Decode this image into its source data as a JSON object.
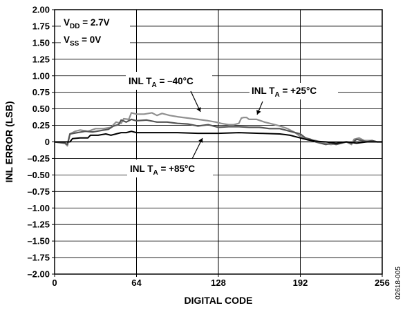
{
  "chart_data": {
    "type": "line",
    "title": "",
    "xlabel": "DIGITAL CODE",
    "ylabel": "INL ERROR (LSB)",
    "xlim": [
      0,
      256
    ],
    "ylim": [
      -2.0,
      2.0
    ],
    "x_ticks": [
      "0",
      "64",
      "128",
      "192",
      "256"
    ],
    "y_ticks": [
      "2.00",
      "1.75",
      "1.50",
      "1.25",
      "1.00",
      "0.75",
      "0.50",
      "0.25",
      "0",
      "–0.25",
      "–0.50",
      "–0.75",
      "–1.00",
      "–1.25",
      "–1.50",
      "–1.75",
      "–2.00"
    ],
    "grid": true,
    "conditions": [
      {
        "main": "V",
        "sub": "DD",
        "rest": " = 2.7V"
      },
      {
        "main": "V",
        "sub": "SS",
        "rest": " = 0V"
      }
    ],
    "annotations": [
      {
        "pre": "INL T",
        "sub": "A",
        "post": " = –40°C",
        "series_index": 0
      },
      {
        "pre": "INL T",
        "sub": "A",
        "post": " = +25°C",
        "series_index": 1
      },
      {
        "pre": "INL T",
        "sub": "A",
        "post": " = +85°C",
        "series_index": 2
      }
    ],
    "series": [
      {
        "color": "#909090",
        "x": [
          0,
          8,
          10,
          12,
          16,
          20,
          26,
          32,
          38,
          44,
          48,
          52,
          54,
          58,
          60,
          64,
          70,
          76,
          80,
          84,
          90,
          96,
          104,
          112,
          120,
          126,
          130,
          136,
          140,
          144,
          146,
          148,
          150,
          152,
          158,
          164,
          170,
          176,
          182,
          188,
          192,
          198,
          204,
          210,
          216,
          222,
          228,
          232,
          234,
          238,
          242,
          248,
          252,
          256
        ],
        "y": [
          0.0,
          -0.02,
          -0.06,
          0.12,
          0.16,
          0.18,
          0.16,
          0.2,
          0.2,
          0.22,
          0.3,
          0.28,
          0.35,
          0.34,
          0.44,
          0.42,
          0.42,
          0.44,
          0.4,
          0.43,
          0.4,
          0.38,
          0.36,
          0.34,
          0.32,
          0.3,
          0.28,
          0.26,
          0.26,
          0.28,
          0.36,
          0.37,
          0.37,
          0.34,
          0.34,
          0.3,
          0.27,
          0.24,
          0.2,
          0.14,
          0.08,
          0.04,
          0.02,
          -0.02,
          -0.04,
          -0.02,
          0.0,
          -0.04,
          0.04,
          0.06,
          0.02,
          0.02,
          0.0,
          0.0
        ]
      },
      {
        "color": "#555555",
        "x": [
          0,
          8,
          10,
          12,
          18,
          24,
          30,
          36,
          42,
          46,
          50,
          52,
          56,
          60,
          64,
          72,
          80,
          88,
          96,
          104,
          112,
          120,
          128,
          136,
          144,
          152,
          160,
          168,
          176,
          184,
          192,
          196,
          200,
          204,
          208,
          212,
          216,
          220,
          224,
          228,
          232,
          236,
          240,
          244,
          248,
          252,
          256
        ],
        "y": [
          0.0,
          -0.02,
          -0.04,
          0.12,
          0.14,
          0.16,
          0.15,
          0.17,
          0.19,
          0.24,
          0.26,
          0.33,
          0.3,
          0.34,
          0.32,
          0.33,
          0.3,
          0.3,
          0.28,
          0.27,
          0.24,
          0.26,
          0.22,
          0.23,
          0.23,
          0.22,
          0.22,
          0.2,
          0.2,
          0.16,
          0.12,
          0.06,
          0.04,
          0.0,
          -0.02,
          -0.04,
          -0.02,
          -0.04,
          -0.02,
          0.0,
          -0.02,
          0.04,
          0.02,
          0.0,
          0.02,
          0.0,
          0.0
        ]
      },
      {
        "color": "#000000",
        "x": [
          0,
          8,
          12,
          14,
          20,
          26,
          28,
          34,
          40,
          44,
          48,
          52,
          56,
          60,
          64,
          72,
          80,
          96,
          112,
          128,
          144,
          160,
          176,
          184,
          192,
          198,
          204,
          212,
          220,
          228,
          236,
          244,
          250,
          256
        ],
        "y": [
          0.0,
          0.0,
          0.0,
          0.05,
          0.06,
          0.06,
          0.1,
          0.1,
          0.12,
          0.1,
          0.12,
          0.14,
          0.14,
          0.16,
          0.14,
          0.14,
          0.14,
          0.14,
          0.13,
          0.13,
          0.14,
          0.13,
          0.12,
          0.1,
          0.06,
          0.03,
          0.01,
          0.0,
          -0.02,
          0.0,
          -0.02,
          0.0,
          0.0,
          0.0
        ]
      }
    ]
  },
  "figure_id": "02618-005"
}
